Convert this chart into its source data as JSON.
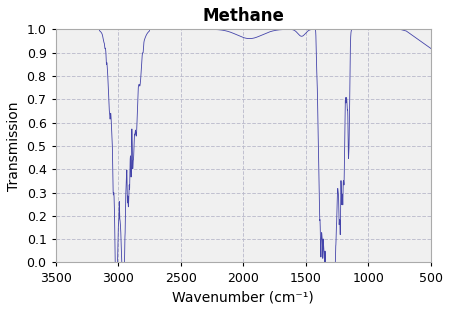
{
  "title": "Methane",
  "xlabel": "Wavenumber (cm⁻¹)",
  "ylabel": "Transmission",
  "xlim": [
    3500,
    500
  ],
  "ylim": [
    0.0,
    1.0
  ],
  "xticks": [
    3500,
    3000,
    2500,
    2000,
    1500,
    1000,
    500
  ],
  "yticks": [
    0.0,
    0.1,
    0.2,
    0.3,
    0.4,
    0.5,
    0.6,
    0.7,
    0.8,
    0.9,
    1.0
  ],
  "line_color": "#4444aa",
  "plot_bg_color": "#f0f0f0",
  "fig_bg_color": "#ffffff",
  "grid_color": "#bbbbcc",
  "title_fontsize": 12,
  "label_fontsize": 10,
  "tick_fontsize": 9
}
